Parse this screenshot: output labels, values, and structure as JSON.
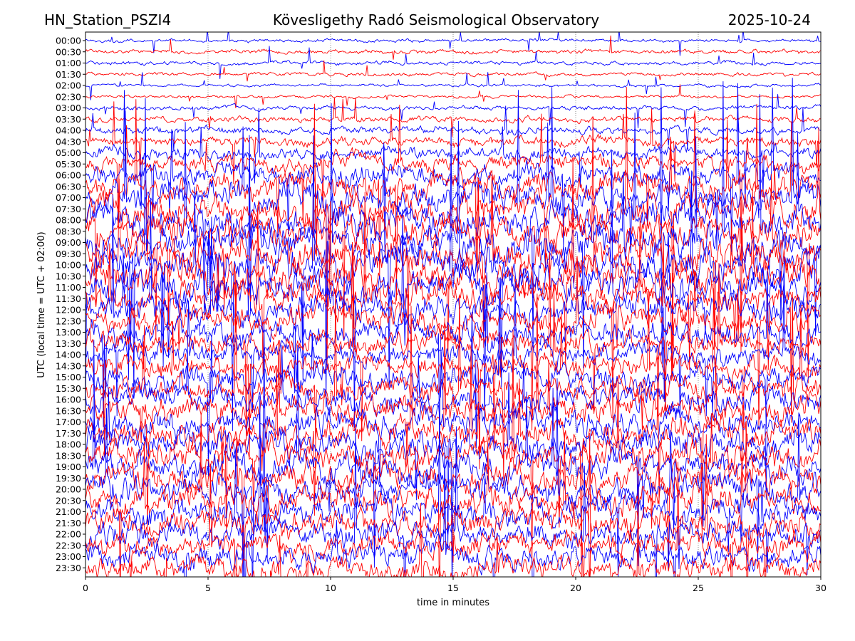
{
  "header": {
    "station": "HN_Station_PSZI4",
    "observatory": "Kövesligethy Radó Seismological Observatory",
    "date": "2025-10-24"
  },
  "chart_data": {
    "type": "line",
    "title": "Kövesligethy Radó Seismological Observatory",
    "xlabel": "time in minutes",
    "ylabel": "UTC (local time = UTC + 02:00)",
    "xlim": [
      0,
      30
    ],
    "x_ticks": [
      "0",
      "5",
      "10",
      "15",
      "20",
      "25",
      "30"
    ],
    "row_labels": [
      "00:00",
      "00:30",
      "01:00",
      "01:30",
      "02:00",
      "02:30",
      "03:00",
      "03:30",
      "04:00",
      "04:30",
      "05:00",
      "05:30",
      "06:00",
      "06:30",
      "07:00",
      "07:30",
      "08:00",
      "08:30",
      "09:00",
      "09:30",
      "10:00",
      "10:30",
      "11:00",
      "11:30",
      "12:00",
      "12:30",
      "13:00",
      "13:30",
      "14:00",
      "14:30",
      "15:00",
      "15:30",
      "16:00",
      "16:30",
      "17:00",
      "17:30",
      "18:00",
      "18:30",
      "19:00",
      "19:30",
      "20:00",
      "20:30",
      "21:00",
      "21:30",
      "22:00",
      "22:30",
      "23:00",
      "23:30"
    ],
    "relative_amplitude": [
      0.35,
      0.45,
      0.4,
      0.35,
      0.3,
      0.3,
      0.45,
      0.6,
      0.8,
      1.0,
      1.3,
      1.7,
      2.2,
      2.6,
      3.0,
      3.2,
      3.4,
      3.5,
      3.6,
      3.6,
      3.6,
      3.5,
      3.4,
      3.2,
      3.0,
      2.8,
      2.6,
      2.4,
      2.3,
      2.4,
      2.5,
      2.6,
      2.7,
      2.8,
      2.9,
      3.0,
      3.0,
      3.0,
      3.0,
      3.0,
      3.0,
      3.0,
      2.9,
      2.8,
      2.7,
      2.6,
      2.5,
      2.4
    ],
    "colors": [
      "#0000ff",
      "#ff0000"
    ],
    "grid": false
  }
}
